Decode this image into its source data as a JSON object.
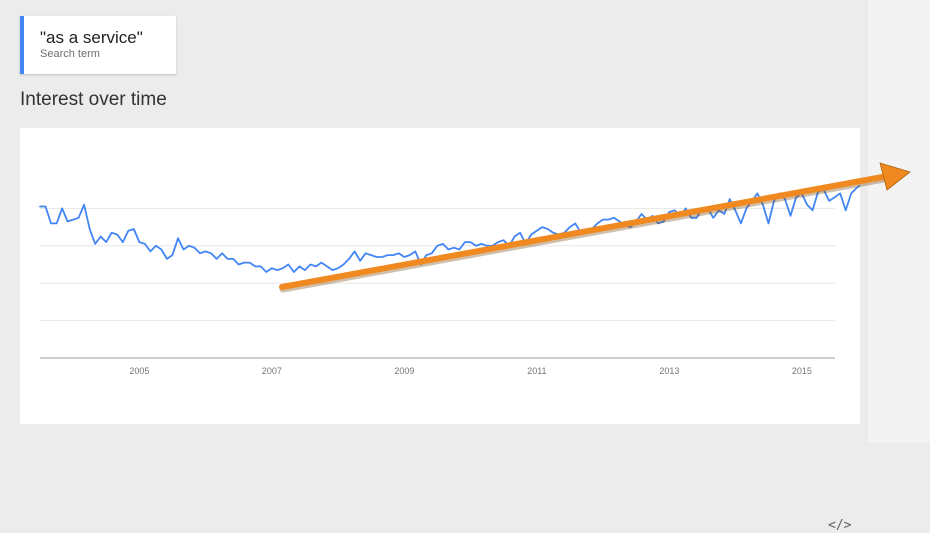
{
  "search_term": {
    "term": "\"as a service\"",
    "subtitle": "Search term",
    "color": "#4285f4"
  },
  "section_title": "Interest over time",
  "embed_icon": {
    "name": "embed-code-icon",
    "glyph": "</>"
  },
  "chart_data": {
    "type": "line",
    "title": "Interest over time",
    "xlabel": "",
    "ylabel": "",
    "xlim": [
      2004.0,
      2016.0
    ],
    "ylim": [
      0,
      100
    ],
    "x_ticks": [
      2005,
      2007,
      2009,
      2011,
      2013,
      2015
    ],
    "y_gridlines": [
      20,
      40,
      60,
      80
    ],
    "grid": true,
    "legend": "none",
    "series": [
      {
        "color": "#4285f4",
        "x_start": 2004.0,
        "x_step": 0.0833,
        "values": [
          81,
          81,
          72,
          72,
          80,
          73,
          74,
          75,
          82,
          69,
          61,
          65,
          62,
          67,
          66,
          62,
          68,
          69,
          62,
          61,
          57,
          60,
          58,
          53,
          55,
          64,
          58,
          60,
          59,
          56,
          57,
          56,
          53,
          56,
          53,
          53,
          50,
          51,
          51,
          49,
          49,
          46,
          48,
          47,
          48,
          50,
          46,
          49,
          47,
          50,
          49,
          51,
          49,
          47,
          48,
          50,
          53,
          57,
          52,
          56,
          55,
          54,
          54,
          55,
          55,
          56,
          54,
          55,
          57,
          50,
          55,
          56,
          60,
          61,
          58,
          59,
          58,
          62,
          62,
          60,
          61,
          60,
          60,
          62,
          63,
          60,
          65,
          67,
          61,
          66,
          68,
          70,
          69,
          67,
          66,
          67,
          70,
          72,
          67,
          67,
          69,
          72,
          74,
          74,
          75,
          73,
          71,
          70,
          73,
          77,
          74,
          76,
          72,
          73,
          78,
          79,
          76,
          80,
          75,
          75,
          80,
          80,
          75,
          79,
          77,
          85,
          79,
          72,
          80,
          84,
          88,
          82,
          72,
          84,
          88,
          85,
          76,
          86,
          88,
          82,
          79,
          89,
          90,
          84,
          86,
          88,
          79,
          88,
          91,
          93,
          84,
          95,
          97,
          91,
          83,
          88,
          93,
          95,
          94,
          92,
          91,
          97,
          100,
          90
        ]
      }
    ],
    "annotation": {
      "type": "arrow",
      "color": "#f0891f",
      "meaning": "upward trend"
    }
  }
}
